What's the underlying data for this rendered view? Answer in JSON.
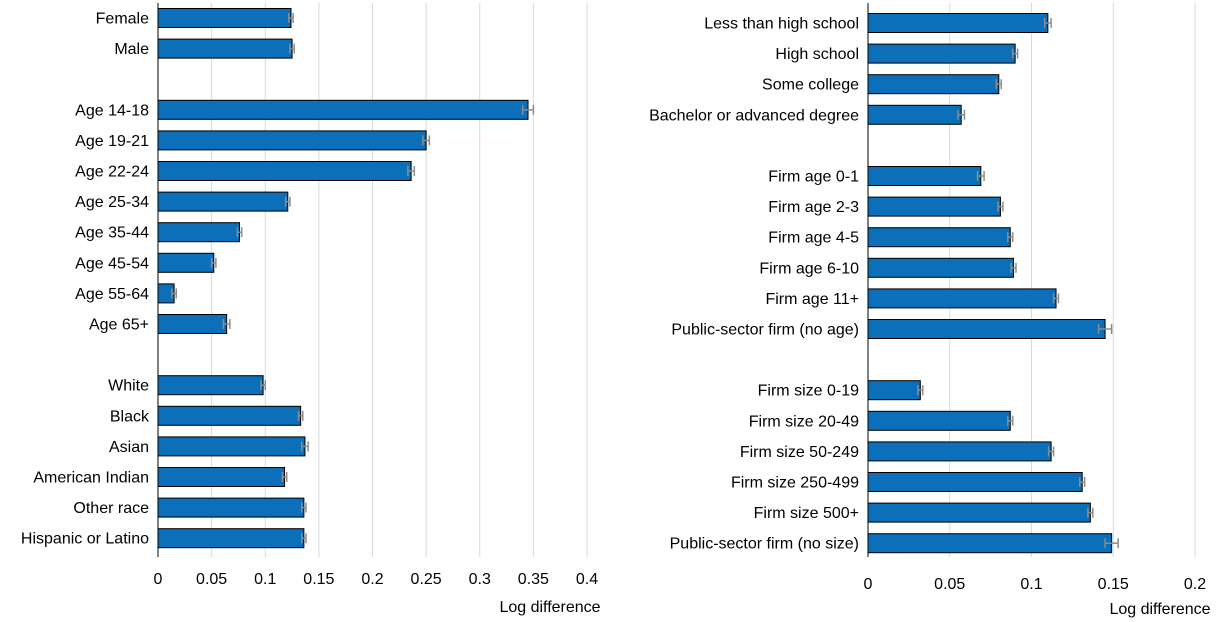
{
  "colors": {
    "bar": "#0b6fba",
    "grid": "#d9d9d9",
    "error_bar": "#8c8c8c"
  },
  "chart_data": [
    {
      "type": "bar",
      "orientation": "horizontal",
      "xlabel": "Log difference",
      "xlim": [
        0,
        0.4
      ],
      "xticks": [
        0,
        0.05,
        0.1,
        0.15,
        0.2,
        0.25,
        0.3,
        0.35,
        0.4
      ],
      "xtick_labels": [
        "0",
        "0.05",
        "0.1",
        "0.15",
        "0.2",
        "0.25",
        "0.3",
        "0.35",
        "0.4"
      ],
      "grid": "vertical",
      "groups": [
        {
          "categories": [
            "Female",
            "Male"
          ],
          "values": [
            0.124,
            0.125
          ],
          "errors": [
            0.002,
            0.002
          ]
        },
        {
          "categories": [
            "Age 14-18",
            "Age 19-21",
            "Age 22-24",
            "Age 25-34",
            "Age 35-44",
            "Age 45-54",
            "Age 55-64",
            "Age 65+"
          ],
          "values": [
            0.345,
            0.25,
            0.236,
            0.121,
            0.076,
            0.052,
            0.015,
            0.064
          ],
          "errors": [
            0.005,
            0.003,
            0.003,
            0.002,
            0.002,
            0.002,
            0.002,
            0.003
          ]
        },
        {
          "categories": [
            "White",
            "Black",
            "Asian",
            "American Indian",
            "Other race",
            "Hispanic or Latino"
          ],
          "values": [
            0.098,
            0.133,
            0.137,
            0.118,
            0.136,
            0.136
          ],
          "errors": [
            0.002,
            0.002,
            0.003,
            0.002,
            0.002,
            0.002
          ]
        }
      ]
    },
    {
      "type": "bar",
      "orientation": "horizontal",
      "xlabel": "Log difference",
      "xlim": [
        0,
        0.2
      ],
      "xticks": [
        0,
        0.05,
        0.1,
        0.15,
        0.2
      ],
      "xtick_labels": [
        "0",
        "0.05",
        "0.1",
        "0.15",
        "0.2"
      ],
      "grid": "vertical",
      "groups": [
        {
          "categories": [
            "Less than high school",
            "High school",
            "Some college",
            "Bachelor or advanced degree"
          ],
          "values": [
            0.11,
            0.09,
            0.08,
            0.057
          ],
          "errors": [
            0.002,
            0.0015,
            0.0015,
            0.002
          ]
        },
        {
          "categories": [
            "Firm age 0-1",
            "Firm age 2-3",
            "Firm age 4-5",
            "Firm age 6-10",
            "Firm age 11+",
            "Public-sector firm (no age)"
          ],
          "values": [
            0.069,
            0.081,
            0.087,
            0.089,
            0.115,
            0.145
          ],
          "errors": [
            0.002,
            0.0015,
            0.0015,
            0.0015,
            0.0015,
            0.004
          ]
        },
        {
          "categories": [
            "Firm size 0-19",
            "Firm size 20-49",
            "Firm size 50-249",
            "Firm size 250-499",
            "Firm size 500+",
            "Public-sector firm (no size)"
          ],
          "values": [
            0.032,
            0.087,
            0.112,
            0.131,
            0.136,
            0.149
          ],
          "errors": [
            0.0015,
            0.0015,
            0.0015,
            0.0015,
            0.0015,
            0.004
          ]
        }
      ]
    }
  ]
}
